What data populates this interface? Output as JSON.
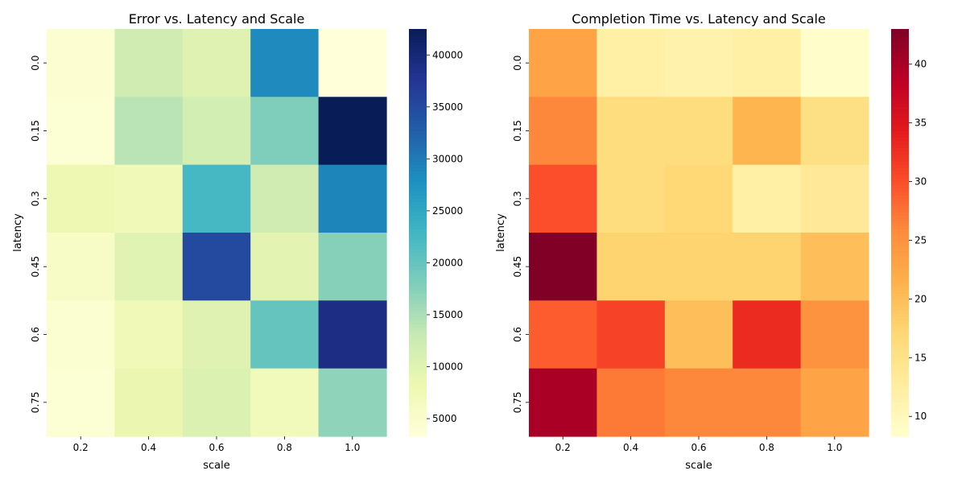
{
  "chart_data": [
    {
      "type": "heatmap",
      "title": "Error vs. Latency and Scale",
      "xlabel": "scale",
      "ylabel": "latency",
      "x_categories": [
        "0.2",
        "0.4",
        "0.6",
        "0.8",
        "1.0"
      ],
      "y_categories": [
        "0.0",
        "0.15",
        "0.3",
        "0.45",
        "0.6",
        "0.75"
      ],
      "values": [
        [
          4200,
          12000,
          10000,
          28500,
          3300
        ],
        [
          4000,
          14000,
          11500,
          18000,
          42500
        ],
        [
          8000,
          7200,
          22500,
          12000,
          29000
        ],
        [
          5500,
          9800,
          35000,
          9500,
          17500
        ],
        [
          4300,
          7500,
          10000,
          20000,
          39000
        ],
        [
          4000,
          8500,
          10500,
          7000,
          17000
        ]
      ],
      "vmin": 3300,
      "vmax": 42500,
      "cmap": "YlGnBu",
      "colorbar_ticks": [
        5000,
        10000,
        15000,
        20000,
        25000,
        30000,
        35000,
        40000
      ]
    },
    {
      "type": "heatmap",
      "title": "Completion Time vs. Latency and Scale",
      "xlabel": "scale",
      "ylabel": "latency",
      "x_categories": [
        "0.2",
        "0.4",
        "0.6",
        "0.8",
        "1.0"
      ],
      "y_categories": [
        "0.0",
        "0.15",
        "0.3",
        "0.45",
        "0.6",
        "0.75"
      ],
      "values": [
        [
          23,
          12,
          11.5,
          12,
          8.5
        ],
        [
          26,
          16,
          16,
          21,
          15.5
        ],
        [
          30,
          16,
          17,
          12,
          13.5
        ],
        [
          43,
          17.5,
          17.5,
          17.5,
          20
        ],
        [
          29,
          31,
          20,
          33,
          25
        ],
        [
          40,
          27,
          26,
          26,
          23
        ]
      ],
      "vmin": 8.3,
      "vmax": 43,
      "cmap": "YlOrRd",
      "colorbar_ticks": [
        10,
        15,
        20,
        25,
        30,
        35,
        40
      ]
    }
  ]
}
